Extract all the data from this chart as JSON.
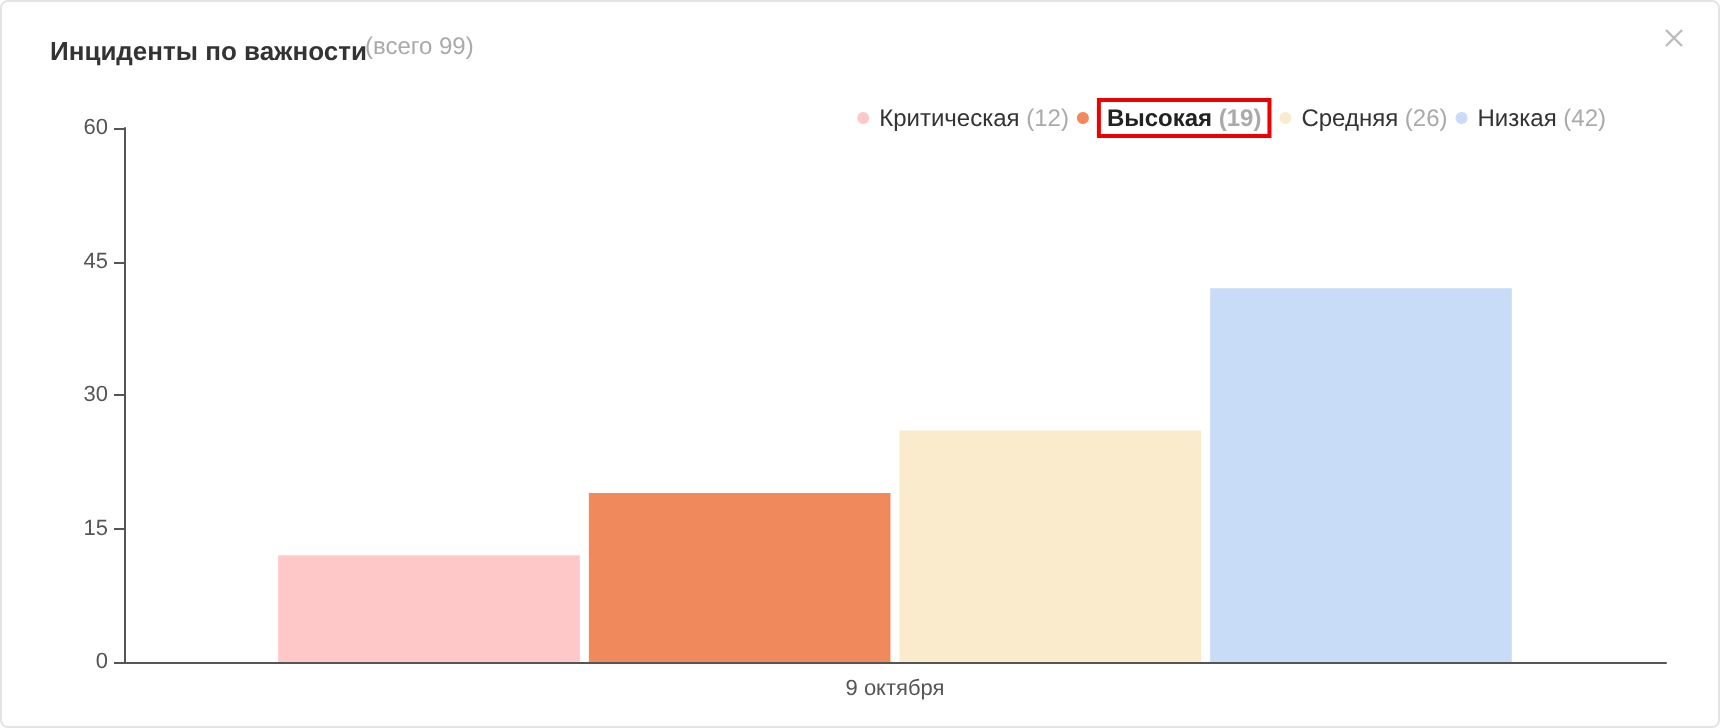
{
  "chart_data": {
    "type": "bar",
    "title": "Инциденты по важности",
    "subtitle": "(всего 99)",
    "categories": [
      "9 октября"
    ],
    "series": [
      {
        "name": "Критическая (12)",
        "color": "#ffc8c8",
        "values": [
          12
        ]
      },
      {
        "name": "Высокая (19)",
        "color": "#f0895c",
        "values": [
          19
        ]
      },
      {
        "name": "Средняя (26)",
        "color": "#f9ebcc",
        "values": [
          26
        ]
      },
      {
        "name": "Низкая (42)",
        "color": "#c8dbf7",
        "values": [
          42
        ]
      }
    ],
    "ylim": [
      0,
      60
    ],
    "yticks": [
      0,
      15,
      30,
      45,
      60
    ],
    "grid": false,
    "legend": "top right"
  }
}
